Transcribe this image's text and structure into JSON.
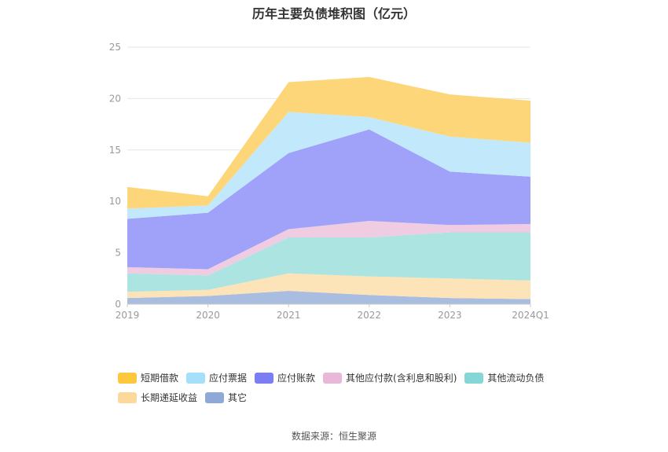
{
  "chart_data": {
    "type": "area",
    "stacked": true,
    "title": "历年主要负债堆积图（亿元）",
    "categories": [
      "2019",
      "2020",
      "2021",
      "2022",
      "2023",
      "2024Q1"
    ],
    "ylim": [
      0,
      25
    ],
    "yticks": [
      0,
      5,
      10,
      15,
      20,
      25
    ],
    "grid": true,
    "legend_position": "bottom",
    "series": [
      {
        "name": "其它",
        "color": "#a9bde0",
        "values": [
          0.6,
          0.8,
          1.3,
          0.9,
          0.6,
          0.5
        ]
      },
      {
        "name": "长期递延收益",
        "color": "#fde3b8",
        "values": [
          0.6,
          0.6,
          1.7,
          1.8,
          1.9,
          1.8
        ]
      },
      {
        "name": "其他流动负债",
        "color": "#ace4e2",
        "values": [
          1.8,
          1.4,
          3.5,
          3.8,
          4.5,
          4.7
        ]
      },
      {
        "name": "其他应付款(含利息和股利)",
        "color": "#f0cce3",
        "values": [
          0.6,
          0.6,
          0.8,
          1.6,
          0.7,
          0.8
        ]
      },
      {
        "name": "应付账款",
        "color": "#a0a1f8",
        "values": [
          4.7,
          5.5,
          7.4,
          8.9,
          5.2,
          4.6
        ]
      },
      {
        "name": "应付票据",
        "color": "#c2e9fb",
        "values": [
          1.0,
          0.7,
          4.0,
          1.2,
          3.4,
          3.3
        ]
      },
      {
        "name": "短期借款",
        "color": "#fdd67a",
        "values": [
          2.1,
          0.9,
          2.9,
          3.9,
          4.1,
          4.1
        ]
      }
    ],
    "legend": [
      {
        "name": "短期借款",
        "color": "#fec83e"
      },
      {
        "name": "应付票据",
        "color": "#a6dffa"
      },
      {
        "name": "应付账款",
        "color": "#7b7ef2"
      },
      {
        "name": "其他应付款(含利息和股利)",
        "color": "#e8b8d8"
      },
      {
        "name": "其他流动负债",
        "color": "#85d6d6"
      },
      {
        "name": "长期递延收益",
        "color": "#fcd99a"
      },
      {
        "name": "其它",
        "color": "#8ea9d8"
      }
    ]
  },
  "footer": {
    "source": "数据来源：恒生聚源"
  }
}
